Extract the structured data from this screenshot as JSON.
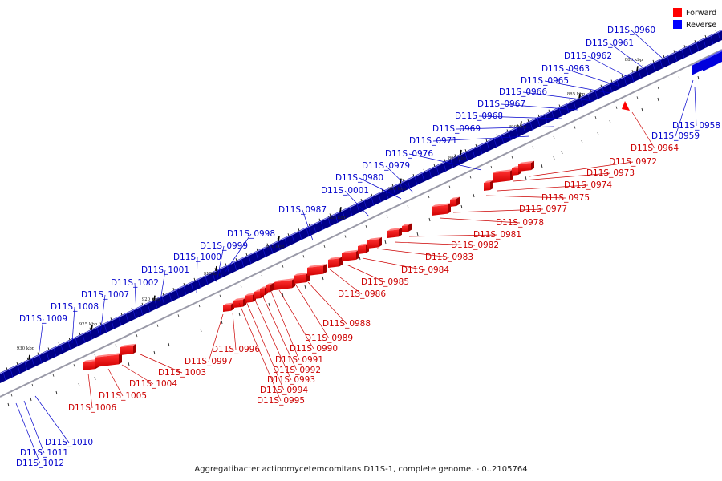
{
  "caption": "Aggregatibacter actinomycetemcomitans D11S-1, complete genome. - 0..2105764",
  "legend": [
    {
      "label": "Forward",
      "color": "#ff0000"
    },
    {
      "label": "Reverse",
      "color": "#0000ff"
    }
  ],
  "scale_labels": [
    "880 kbp",
    "885 kbp",
    "890 kbp",
    "895 kbp",
    "900 kbp",
    "905 kbp",
    "910 kbp",
    "915 kbp",
    "920 kbp",
    "925 kbp",
    "930 kbp"
  ],
  "reverse_genes": [
    "D11S_0960",
    "D11S_0961",
    "D11S_0962",
    "D11S_0963",
    "D11S_0965",
    "D11S_0966",
    "D11S_0967",
    "D11S_0968",
    "D11S_0969",
    "D11S_0971",
    "D11S_0976",
    "D11S_0979",
    "D11S_0980",
    "D11S_0001",
    "D11S_0987",
    "D11S_0998",
    "D11S_0999",
    "D11S_1000",
    "D11S_1001",
    "D11S_1002",
    "D11S_1007",
    "D11S_1008",
    "D11S_1009",
    "D11S_0958",
    "D11S_0959",
    "D11S_1010",
    "D11S_1011",
    "D11S_1012"
  ],
  "forward_genes": [
    "D11S_0964",
    "D11S_0972",
    "D11S_0973",
    "D11S_0974",
    "D11S_0975",
    "D11S_0977",
    "D11S_0978",
    "D11S_0981",
    "D11S_0982",
    "D11S_0983",
    "D11S_0984",
    "D11S_0985",
    "D11S_0986",
    "D11S_0988",
    "D11S_0989",
    "D11S_0990",
    "D11S_0991",
    "D11S_0992",
    "D11S_0993",
    "D11S_0994",
    "D11S_0995",
    "D11S_0996",
    "D11S_0997",
    "D11S_1003",
    "D11S_1004",
    "D11S_1005",
    "D11S_1006"
  ]
}
